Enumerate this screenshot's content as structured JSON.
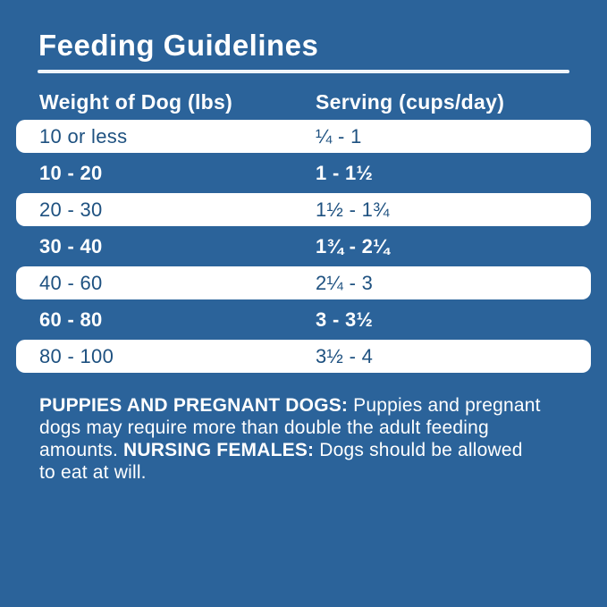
{
  "title": "Feeding Guidelines",
  "colors": {
    "background": "#2b639a",
    "text_on_blue": "#ffffff",
    "row_highlight_bg": "#ffffff",
    "row_highlight_text": "#1e5180",
    "title_rule": "#eef4fa"
  },
  "table": {
    "columns": [
      "Weight of Dog (lbs)",
      "Serving (cups/day)"
    ],
    "rows": [
      {
        "weight": "10 or less",
        "serving": "¼ - 1",
        "highlighted": true
      },
      {
        "weight": "10 - 20",
        "serving": "1 - 1½",
        "highlighted": false
      },
      {
        "weight": "20 - 30",
        "serving": "1½ - 1¾",
        "highlighted": true
      },
      {
        "weight": "30 - 40",
        "serving": "1¾ - 2¼",
        "highlighted": false
      },
      {
        "weight": "40 - 60",
        "serving": "2¼ - 3",
        "highlighted": true
      },
      {
        "weight": "60 - 80",
        "serving": "3 - 3½",
        "highlighted": false
      },
      {
        "weight": "80 - 100",
        "serving": "3½ - 4",
        "highlighted": true
      }
    ]
  },
  "footnote": {
    "lines": [
      [
        {
          "text": "PUPPIES AND PREGNANT DOGS:",
          "bold": true
        },
        {
          "text": " Puppies and pregnant",
          "bold": false
        }
      ],
      [
        {
          "text": "dogs may require more than double the adult feeding",
          "bold": false
        }
      ],
      [
        {
          "text": "amounts. ",
          "bold": false
        },
        {
          "text": "NURSING FEMALES:",
          "bold": true
        },
        {
          "text": " Dogs should be allowed",
          "bold": false
        }
      ],
      [
        {
          "text": "to eat at will.",
          "bold": false
        }
      ]
    ]
  }
}
